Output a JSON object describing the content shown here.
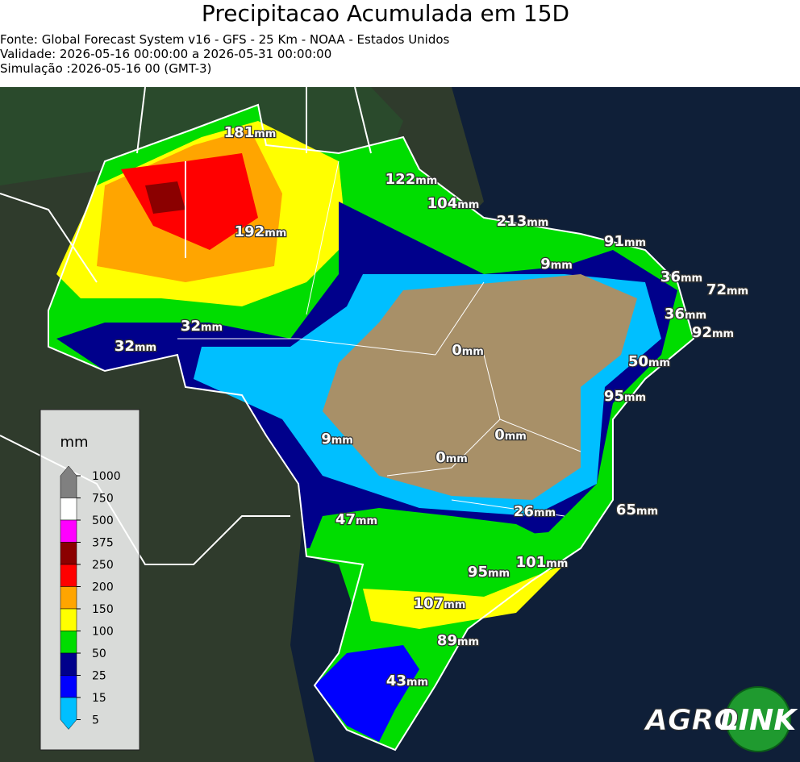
{
  "header": {
    "title": "Precipitacao Acumulada em 15D",
    "lines": [
      "Fonte: Global Forecast System v16 - GFS - 25 Km - NOAA - Estados Unidos",
      "Validade: 2026-05-16 00:00:00 a 2026-05-31 00:00:00",
      "Simulação :2026-05-16 00 (GMT-3)"
    ]
  },
  "labels": [
    {
      "value": 181,
      "unit": "mm"
    },
    {
      "value": 122,
      "unit": "mm"
    },
    {
      "value": 104,
      "unit": "mm"
    },
    {
      "value": 213,
      "unit": "mm"
    },
    {
      "value": 192,
      "unit": "mm"
    },
    {
      "value": 91,
      "unit": "mm"
    },
    {
      "value": 9,
      "unit": "mm"
    },
    {
      "value": 36,
      "unit": "mm"
    },
    {
      "value": 72,
      "unit": "mm"
    },
    {
      "value": 36,
      "unit": "mm"
    },
    {
      "value": 92,
      "unit": "mm"
    },
    {
      "value": 32,
      "unit": "mm"
    },
    {
      "value": 32,
      "unit": "mm"
    },
    {
      "value": 0,
      "unit": "mm"
    },
    {
      "value": 50,
      "unit": "mm"
    },
    {
      "value": 95,
      "unit": "mm"
    },
    {
      "value": 9,
      "unit": "mm"
    },
    {
      "value": 0,
      "unit": "mm"
    },
    {
      "value": 0,
      "unit": "mm"
    },
    {
      "value": 26,
      "unit": "mm"
    },
    {
      "value": 65,
      "unit": "mm"
    },
    {
      "value": 47,
      "unit": "mm"
    },
    {
      "value": 101,
      "unit": "mm"
    },
    {
      "value": 95,
      "unit": "mm"
    },
    {
      "value": 107,
      "unit": "mm"
    },
    {
      "value": 89,
      "unit": "mm"
    },
    {
      "value": 43,
      "unit": "mm"
    }
  ],
  "legend": {
    "title": "mm",
    "ticks": [
      1000,
      750,
      500,
      375,
      250,
      200,
      150,
      100,
      50,
      25,
      15,
      5
    ],
    "colors": [
      "#808080",
      "#ffffff",
      "#ff00ff",
      "#8b0000",
      "#ff0000",
      "#ffa500",
      "#ffff00",
      "#00dd00",
      "#00008b",
      "#0000ff",
      "#00bfff"
    ]
  },
  "logo": {
    "left": "AGRO",
    "right": "LINK"
  }
}
